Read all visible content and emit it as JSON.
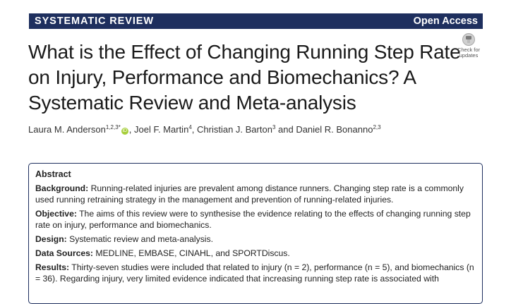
{
  "banner": {
    "article_type": "SYSTEMATIC REVIEW",
    "access": "Open Access"
  },
  "title": "What is the Effect of Changing Running Step Rate on Injury, Performance and Biomechanics? A Systematic Review and Meta-analysis",
  "crossmark": {
    "line1": "Check for",
    "line2": "updates"
  },
  "authors": [
    {
      "name": "Laura M. Anderson",
      "aff": "1,2,3*",
      "orcid": true,
      "sep": ", "
    },
    {
      "name": "Joel F. Martin",
      "aff": "4",
      "orcid": false,
      "sep": ", "
    },
    {
      "name": "Christian J. Barton",
      "aff": "3",
      "orcid": false,
      "sep": " and "
    },
    {
      "name": "Daniel R. Bonanno",
      "aff": "2,3",
      "orcid": false,
      "sep": ""
    }
  ],
  "abstract": {
    "heading": "Abstract",
    "sections": [
      {
        "label": "Background:",
        "text": "Running-related injuries are prevalent among distance runners. Changing step rate is a commonly used running retraining strategy in the management and prevention of running-related injuries."
      },
      {
        "label": "Objective:",
        "text": "The aims of this review were to synthesise the evidence relating to the effects of changing running step rate on injury, performance and biomechanics."
      },
      {
        "label": "Design:",
        "text": "Systematic review and meta-analysis."
      },
      {
        "label": "Data Sources:",
        "text": "MEDLINE, EMBASE, CINAHL, and SPORTDiscus."
      },
      {
        "label": "Results:",
        "text": "Thirty-seven studies were included that related to injury (n = 2), performance (n = 5), and biomechanics (n = 36). Regarding injury, very limited evidence indicated that increasing running step rate is associated with"
      }
    ]
  }
}
